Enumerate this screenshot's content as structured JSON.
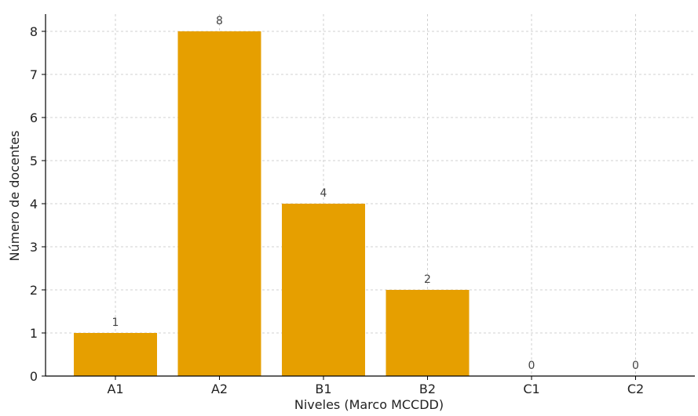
{
  "chart_data": {
    "type": "bar",
    "categories": [
      "A1",
      "A2",
      "B1",
      "B2",
      "C1",
      "C2"
    ],
    "values": [
      1,
      8,
      4,
      2,
      0,
      0
    ],
    "data_labels": [
      "1",
      "8",
      "4",
      "2",
      "0",
      "0"
    ],
    "title": "",
    "xlabel": "Niveles (Marco MCCDD)",
    "ylabel": "Número de docentes",
    "ylim": [
      0,
      8.4
    ],
    "yticks": [
      0,
      1,
      2,
      3,
      4,
      5,
      6,
      7,
      8
    ],
    "grid": true,
    "legend": "none",
    "colors": {
      "bar": "#E69F00",
      "grid": "#d0d0d0",
      "axis": "#000000",
      "text": "#222222",
      "label": "#444444"
    }
  }
}
